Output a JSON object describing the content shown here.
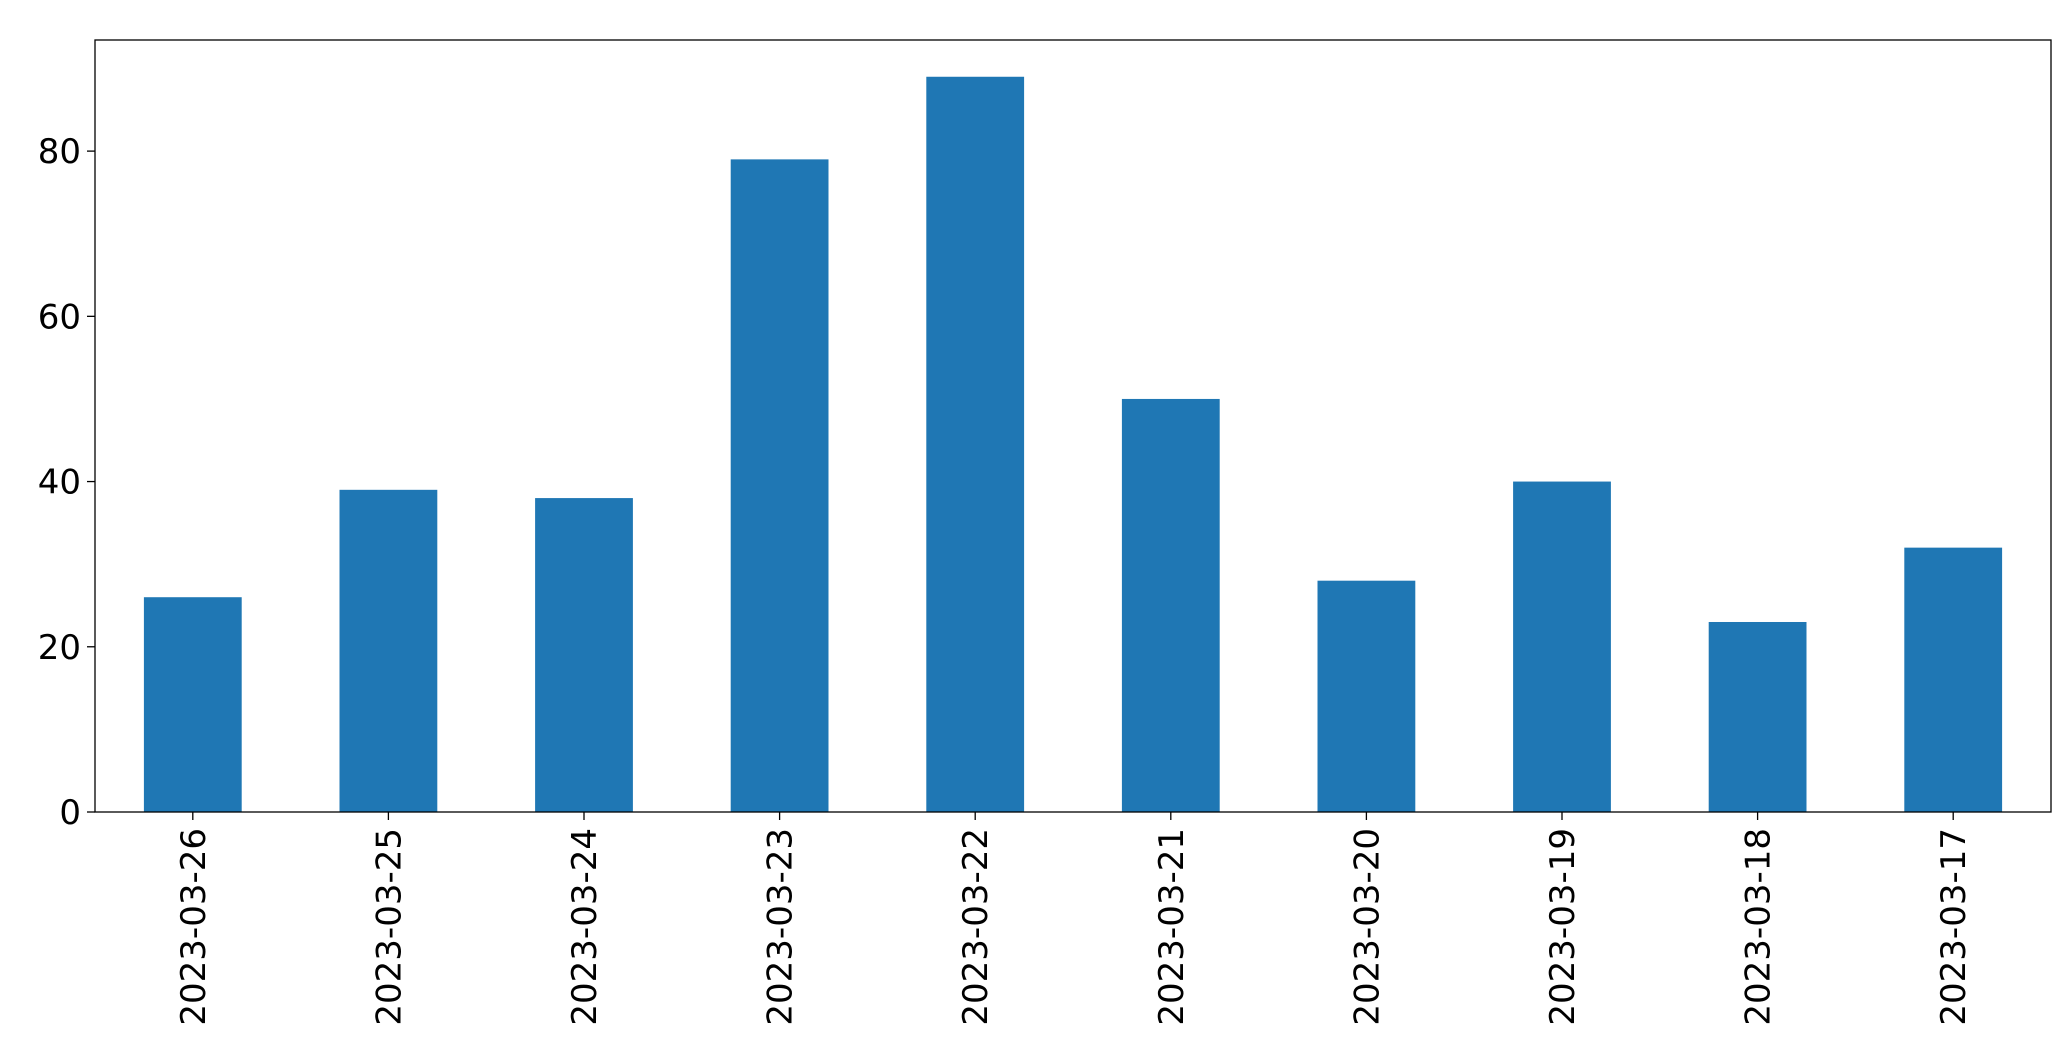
{
  "chart_data": {
    "type": "bar",
    "categories": [
      "2023-03-26",
      "2023-03-25",
      "2023-03-24",
      "2023-03-23",
      "2023-03-22",
      "2023-03-21",
      "2023-03-20",
      "2023-03-19",
      "2023-03-18",
      "2023-03-17"
    ],
    "values": [
      26,
      39,
      38,
      79,
      89,
      50,
      28,
      40,
      23,
      32
    ],
    "color": "#1f77b4",
    "ylim": [
      0,
      93.45
    ],
    "yticks": [
      0,
      20,
      40,
      60,
      80
    ],
    "grid": false
  }
}
